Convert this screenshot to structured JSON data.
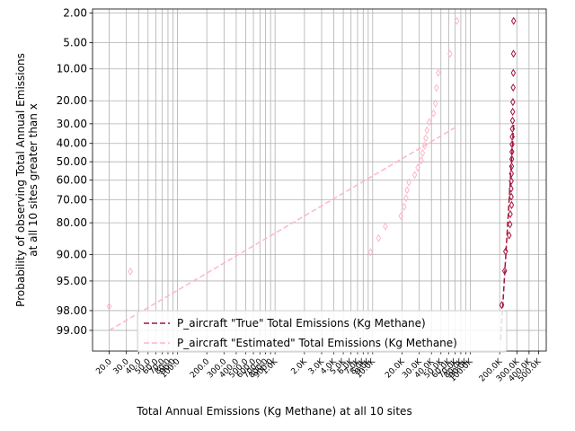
{
  "chart_data": {
    "type": "scatter",
    "title": "",
    "xlabel": "Total Annual Emissions (Kg Methane) at all 10 sites",
    "ylabel_lines": [
      "Probability of observing Total Annual Emissions",
      "at all 10 sites greater than x"
    ],
    "x_scale": "log",
    "y_scale": "probability",
    "xlim": [
      13.5,
      600000
    ],
    "ylim_percent": [
      99.55,
      1.75
    ],
    "grid": true,
    "legend_position": "lower-right",
    "y_ticks": [
      {
        "value": 2,
        "label": "2.00"
      },
      {
        "value": 5,
        "label": "5.00"
      },
      {
        "value": 10,
        "label": "10.00"
      },
      {
        "value": 20,
        "label": "20.00"
      },
      {
        "value": 30,
        "label": "30.00"
      },
      {
        "value": 40,
        "label": "40.00"
      },
      {
        "value": 50,
        "label": "50.00"
      },
      {
        "value": 60,
        "label": "60.00"
      },
      {
        "value": 70,
        "label": "70.00"
      },
      {
        "value": 80,
        "label": "80.00"
      },
      {
        "value": 90,
        "label": "90.00"
      },
      {
        "value": 95,
        "label": "95.00"
      },
      {
        "value": 98,
        "label": "98.00"
      },
      {
        "value": 99,
        "label": "99.00"
      }
    ],
    "x_ticks": [
      {
        "value": 20,
        "label": "20.0"
      },
      {
        "value": 30,
        "label": "30.0"
      },
      {
        "value": 40,
        "label": "40.0"
      },
      {
        "value": 50,
        "label": "50.0"
      },
      {
        "value": 60,
        "label": "60.0"
      },
      {
        "value": 70,
        "label": "70.0"
      },
      {
        "value": 80,
        "label": "80.0"
      },
      {
        "value": 90,
        "label": "90.0"
      },
      {
        "value": 100,
        "label": "100.0"
      },
      {
        "value": 200,
        "label": "200.0"
      },
      {
        "value": 300,
        "label": "300.0"
      },
      {
        "value": 400,
        "label": "400.0"
      },
      {
        "value": 500,
        "label": "500.0"
      },
      {
        "value": 600,
        "label": "600.0"
      },
      {
        "value": 700,
        "label": "700.0"
      },
      {
        "value": 800,
        "label": "800.0"
      },
      {
        "value": 900,
        "label": "900.0"
      },
      {
        "value": 1000,
        "label": "1.0K"
      },
      {
        "value": 2000,
        "label": "2.0K"
      },
      {
        "value": 3000,
        "label": "3.0K"
      },
      {
        "value": 4000,
        "label": "4.0K"
      },
      {
        "value": 5000,
        "label": "5.0K"
      },
      {
        "value": 6000,
        "label": "6.0K"
      },
      {
        "value": 7000,
        "label": "7.0K"
      },
      {
        "value": 8000,
        "label": "8.0K"
      },
      {
        "value": 9000,
        "label": "9.0K"
      },
      {
        "value": 10000,
        "label": "10.0K"
      },
      {
        "value": 20000,
        "label": "20.0K"
      },
      {
        "value": 30000,
        "label": "30.0K"
      },
      {
        "value": 40000,
        "label": "40.0K"
      },
      {
        "value": 50000,
        "label": "50.0K"
      },
      {
        "value": 60000,
        "label": "60.0K"
      },
      {
        "value": 70000,
        "label": "70.0K"
      },
      {
        "value": 80000,
        "label": "80.0K"
      },
      {
        "value": 90000,
        "label": "90.0K"
      },
      {
        "value": 100000,
        "label": "100.0K"
      },
      {
        "value": 200000,
        "label": "200.0K"
      },
      {
        "value": 300000,
        "label": "300.0K"
      },
      {
        "value": 400000,
        "label": "400.0K"
      },
      {
        "value": 500000,
        "label": "500.0K"
      }
    ],
    "series": [
      {
        "name": "P_aircraft \"True\" Total Emissions (Kg Methane)",
        "color": "#a3143c",
        "marker": "thin-diamond",
        "line_style": "dashed",
        "points": [
          {
            "x": 210000,
            "p": 97.6
          },
          {
            "x": 225000,
            "p": 93.4
          },
          {
            "x": 230000,
            "p": 89.2
          },
          {
            "x": 250000,
            "p": 84.5
          },
          {
            "x": 255000,
            "p": 80.6
          },
          {
            "x": 257000,
            "p": 76.5
          },
          {
            "x": 265000,
            "p": 72.5
          },
          {
            "x": 263000,
            "p": 68.5
          },
          {
            "x": 262000,
            "p": 64.5
          },
          {
            "x": 263000,
            "p": 60.5
          },
          {
            "x": 264000,
            "p": 56.5
          },
          {
            "x": 265000,
            "p": 52.5
          },
          {
            "x": 266000,
            "p": 48.5
          },
          {
            "x": 267000,
            "p": 44.5
          },
          {
            "x": 268000,
            "p": 40.5
          },
          {
            "x": 269000,
            "p": 36.5
          },
          {
            "x": 270000,
            "p": 32.5
          },
          {
            "x": 271000,
            "p": 28.5
          },
          {
            "x": 272000,
            "p": 24.5
          },
          {
            "x": 273000,
            "p": 20.5
          },
          {
            "x": 275000,
            "p": 15.3
          },
          {
            "x": 276000,
            "p": 11.0
          },
          {
            "x": 277000,
            "p": 6.8
          },
          {
            "x": 278000,
            "p": 2.6
          }
        ],
        "fit_line": [
          {
            "x": 205000,
            "p": 99.3
          },
          {
            "x": 278000,
            "p": 30.5
          }
        ]
      },
      {
        "name": "P_aircraft \"Estimated\" Total Emissions (Kg Methane)",
        "color": "#ffb6c8",
        "marker": "thin-diamond",
        "line_style": "dashed",
        "points": [
          {
            "x": 20,
            "p": 97.7
          },
          {
            "x": 33,
            "p": 93.5
          },
          {
            "x": 9500,
            "p": 89.4
          },
          {
            "x": 11500,
            "p": 85.4
          },
          {
            "x": 13500,
            "p": 81.4
          },
          {
            "x": 19500,
            "p": 77.3
          },
          {
            "x": 21000,
            "p": 73.3
          },
          {
            "x": 22000,
            "p": 69.2
          },
          {
            "x": 22500,
            "p": 65.2
          },
          {
            "x": 23500,
            "p": 61.2
          },
          {
            "x": 27000,
            "p": 57.2
          },
          {
            "x": 29000,
            "p": 53.2
          },
          {
            "x": 31500,
            "p": 49.2
          },
          {
            "x": 32500,
            "p": 45.2
          },
          {
            "x": 34000,
            "p": 41.2
          },
          {
            "x": 35000,
            "p": 37.2
          },
          {
            "x": 36000,
            "p": 33.2
          },
          {
            "x": 38000,
            "p": 29.2
          },
          {
            "x": 42000,
            "p": 25.2
          },
          {
            "x": 44000,
            "p": 21.1
          },
          {
            "x": 45000,
            "p": 15.4
          },
          {
            "x": 47000,
            "p": 11.0
          },
          {
            "x": 62000,
            "p": 6.8
          },
          {
            "x": 73000,
            "p": 2.6
          }
        ],
        "fit_line": [
          {
            "x": 20,
            "p": 99.0
          },
          {
            "x": 75000,
            "p": 31.0
          }
        ]
      }
    ]
  }
}
